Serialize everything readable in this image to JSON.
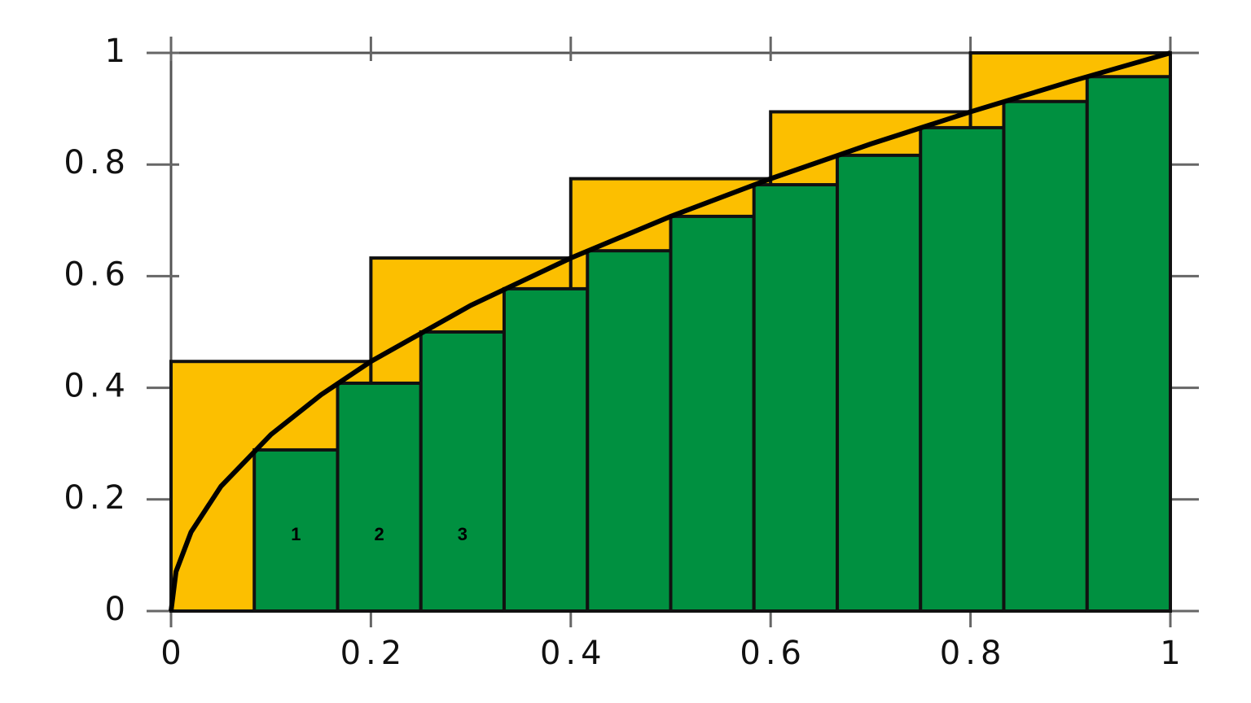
{
  "chart_data": {
    "type": "bar",
    "xlim": [
      0,
      1
    ],
    "ylim": [
      0,
      1
    ],
    "xticks": [
      0,
      0.2,
      0.4,
      0.6,
      0.8,
      1
    ],
    "yticks": [
      0,
      0.2,
      0.4,
      0.6,
      0.8,
      1
    ],
    "series": [
      {
        "color": "#fcbf00",
        "bins": [
          0,
          0.2,
          0.4,
          0.6,
          0.8,
          1
        ],
        "values": [
          0.4472,
          0.6325,
          0.7746,
          0.8944,
          1
        ]
      },
      {
        "color": "#009040",
        "bins": [
          0.0833,
          0.1667,
          0.25,
          0.3333,
          0.4167,
          0.5,
          0.5833,
          0.6667,
          0.75,
          0.8333,
          0.9167,
          1
        ],
        "values": [
          0.2887,
          0.4082,
          0.5,
          0.5774,
          0.6455,
          0.7071,
          0.7638,
          0.8165,
          0.866,
          0.9129,
          0.9574
        ]
      }
    ],
    "line": {
      "color": "#000000",
      "x": [
        0,
        0.005,
        0.02,
        0.05,
        0.1,
        0.15,
        0.2,
        0.3,
        0.4,
        0.5,
        0.6,
        0.7,
        0.8,
        0.9,
        1
      ],
      "y": [
        0,
        0.0707,
        0.1414,
        0.2236,
        0.3162,
        0.3873,
        0.4472,
        0.5477,
        0.6325,
        0.7071,
        0.7746,
        0.8367,
        0.8944,
        0.9487,
        1
      ]
    },
    "annotations": [
      "1",
      "2",
      "3"
    ]
  }
}
